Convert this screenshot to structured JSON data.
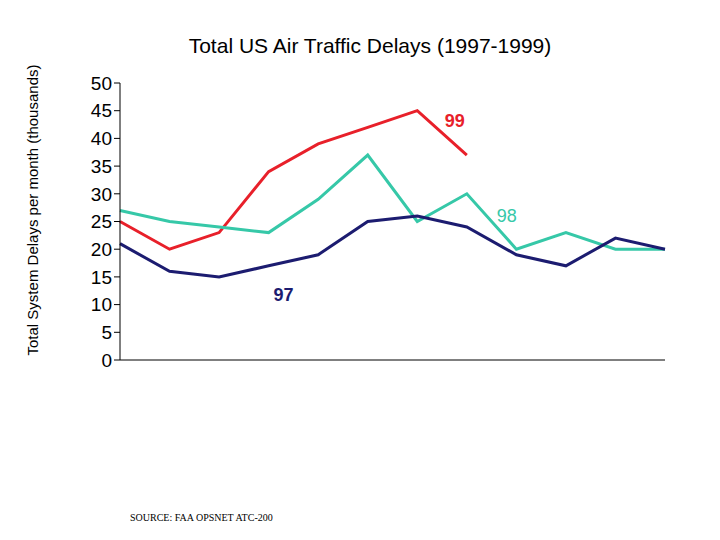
{
  "chart_data": {
    "type": "line",
    "title": "Total US Air Traffic Delays (1997-1999)",
    "y_label": "Total System Delays per month (thousands)",
    "source": "SOURCE: FAA OPSNET ATC-200",
    "categories": [
      null,
      null,
      null,
      null,
      null,
      null,
      null,
      null,
      null,
      null,
      null,
      null
    ],
    "series": [
      {
        "name": "99",
        "color": "#e8202a",
        "values": [
          25,
          20,
          23,
          34,
          39,
          42,
          45,
          37,
          null,
          null,
          null,
          null
        ]
      },
      {
        "name": "98",
        "color": "#36c8a8",
        "values": [
          27,
          25,
          24,
          23,
          29,
          37,
          25,
          30,
          20,
          23,
          20,
          20
        ]
      },
      {
        "name": "97",
        "color": "#1c1c70",
        "values": [
          21,
          16,
          15,
          17,
          19,
          25,
          26,
          24,
          19,
          17,
          22,
          20
        ]
      }
    ],
    "ylim": [
      0,
      50
    ],
    "yticks": [
      0,
      5,
      10,
      15,
      20,
      25,
      30,
      35,
      40,
      45,
      50
    ],
    "tick_labels": "y",
    "grid": false,
    "marker": "none",
    "line_style": "solid"
  }
}
